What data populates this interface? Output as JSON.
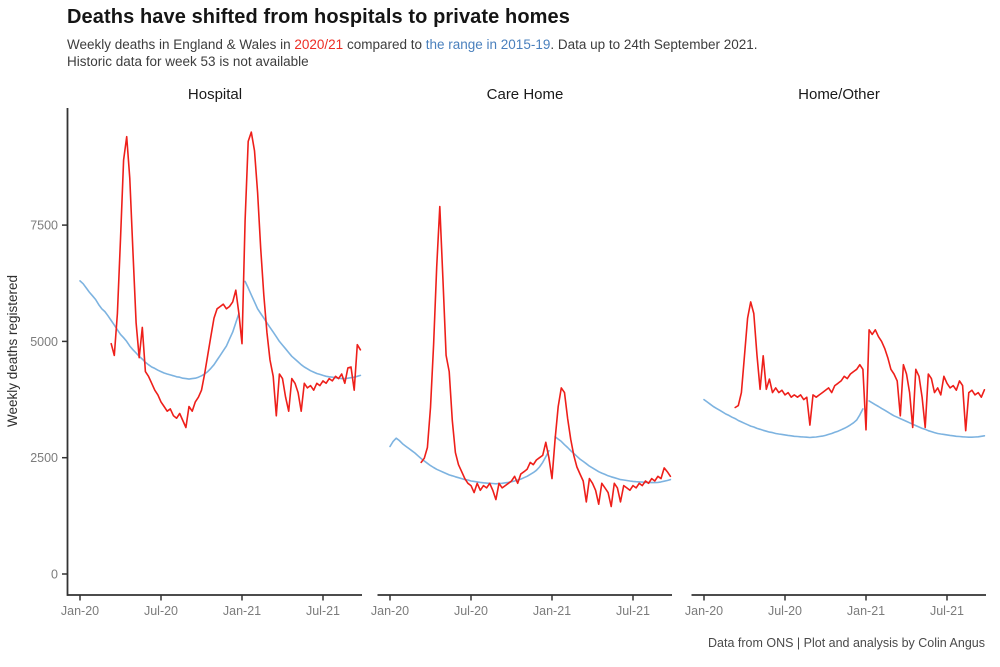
{
  "header": {
    "title": "Deaths have shifted from hospitals to private homes",
    "subtitle": {
      "pre": "Weekly deaths in England & Wales in ",
      "red": "2020/21",
      "mid": " compared to ",
      "blue": "the range in 2015-19",
      "post": ". Data up to 24th September 2021.",
      "line2": "Historic data for week 53 is not available"
    }
  },
  "footer": {
    "caption": "Data from ONS | Plot and analysis by Colin Angus"
  },
  "colors": {
    "red_line": "#ee1f1a",
    "blue_line": "#7db3e0",
    "red_text": "#ed2d24",
    "blue_text": "#4a80bd",
    "axis": "#333333",
    "tick_label": "#7c7c7c"
  },
  "chart_data": {
    "type": "line",
    "title": "Deaths have shifted from hospitals to private homes",
    "ylabel": "Weekly deaths registered",
    "xlabel": "",
    "ylim": [
      0,
      9900
    ],
    "grid": false,
    "legend": "inline in subtitle (red = 2020/21, blue = range in 2015-19)",
    "y_ticks": [
      0,
      2500,
      5000,
      7500
    ],
    "x_tick_labels": [
      "Jan-20",
      "Jul-20",
      "Jan-21",
      "Jul-21"
    ],
    "x_tick_weeks": [
      0,
      26,
      52,
      78
    ],
    "series_meta": {
      "red": {
        "name": "2020/21",
        "color": "#ee1f1a"
      },
      "blue": {
        "name": "range in 2015-19",
        "color": "#7db3e0"
      }
    },
    "facets": [
      {
        "title": "Hospital",
        "blue_start_week": 0,
        "blue": [
          6300,
          6240,
          6150,
          6060,
          5980,
          5900,
          5790,
          5700,
          5640,
          5550,
          5450,
          5350,
          5250,
          5150,
          5080,
          5000,
          4900,
          4820,
          4750,
          4680,
          4620,
          4550,
          4500,
          4450,
          4420,
          4380,
          4350,
          4320,
          4300,
          4280,
          4260,
          4240,
          4230,
          4210,
          4200,
          4190,
          4200,
          4210,
          4230,
          4260,
          4300,
          4350,
          4420,
          4500,
          4600,
          4700,
          4800,
          4900,
          5050,
          5200,
          5400,
          5600,
          null,
          6290,
          6150,
          6000,
          5850,
          5700,
          5600,
          5500,
          5400,
          5300,
          5200,
          5100,
          5000,
          4920,
          4840,
          4760,
          4680,
          4620,
          4560,
          4500,
          4450,
          4410,
          4370,
          4340,
          4310,
          4290,
          4270,
          4250,
          4240,
          4230,
          4220,
          4210,
          4200,
          4200,
          4210,
          4220,
          4230,
          4250,
          4270
        ],
        "red_start_week": 10,
        "red": [
          4950,
          4700,
          5600,
          7200,
          8900,
          9400,
          8500,
          6900,
          5400,
          4650,
          5300,
          4350,
          4250,
          4100,
          3950,
          3850,
          3700,
          3600,
          3500,
          3550,
          3400,
          3350,
          3450,
          3300,
          3150,
          3600,
          3500,
          3700,
          3800,
          3950,
          4300,
          4700,
          5100,
          5500,
          5700,
          5750,
          5800,
          5700,
          5750,
          5850,
          6100,
          5600,
          4950,
          7600,
          9300,
          9500,
          9100,
          8200,
          7000,
          6000,
          5200,
          4600,
          4250,
          3400,
          4300,
          4200,
          3800,
          3500,
          4200,
          4100,
          3900,
          3500,
          4100,
          4000,
          4050,
          3950,
          4100,
          4050,
          4150,
          4100,
          4200,
          4150,
          4250,
          4200,
          4300,
          4100,
          4430,
          4450,
          3950,
          4930,
          4820
        ]
      },
      {
        "title": "Care Home",
        "blue_start_week": 0,
        "blue": [
          2740,
          2850,
          2920,
          2870,
          2800,
          2750,
          2700,
          2650,
          2600,
          2540,
          2480,
          2430,
          2380,
          2330,
          2290,
          2250,
          2220,
          2190,
          2160,
          2130,
          2110,
          2090,
          2070,
          2050,
          2030,
          2020,
          2000,
          1990,
          1980,
          1970,
          1960,
          1955,
          1950,
          1945,
          1940,
          1945,
          1950,
          1960,
          1970,
          1985,
          2000,
          2020,
          2040,
          2070,
          2100,
          2140,
          2180,
          2230,
          2300,
          2400,
          2520,
          2650,
          null,
          2950,
          2900,
          2850,
          2780,
          2720,
          2650,
          2590,
          2530,
          2470,
          2420,
          2370,
          2320,
          2280,
          2240,
          2200,
          2170,
          2140,
          2110,
          2090,
          2070,
          2050,
          2030,
          2020,
          2010,
          2000,
          1990,
          1985,
          1980,
          1975,
          1970,
          1968,
          1965,
          1965,
          1970,
          1980,
          1995,
          2010,
          2030
        ],
        "red_start_week": 10,
        "red": [
          2400,
          2490,
          2720,
          3580,
          4930,
          6600,
          7900,
          6300,
          4700,
          4350,
          3300,
          2610,
          2350,
          2200,
          2050,
          1950,
          1900,
          1750,
          1950,
          1800,
          1900,
          1850,
          1950,
          1800,
          1600,
          1950,
          1850,
          1900,
          1950,
          2000,
          2100,
          1950,
          2150,
          2200,
          2250,
          2400,
          2350,
          2450,
          2500,
          2550,
          2830,
          2500,
          2050,
          2900,
          3600,
          4000,
          3900,
          3350,
          2900,
          2550,
          2300,
          2150,
          2000,
          1550,
          2050,
          1950,
          1800,
          1500,
          1950,
          1850,
          1750,
          1450,
          1950,
          1850,
          1550,
          1900,
          1850,
          1800,
          1900,
          1850,
          1950,
          1900,
          2000,
          1950,
          2050,
          2000,
          2100,
          2050,
          2280,
          2200,
          2100
        ]
      },
      {
        "title": "Home/Other",
        "blue_start_week": 0,
        "blue": [
          3750,
          3700,
          3650,
          3600,
          3560,
          3520,
          3480,
          3440,
          3410,
          3370,
          3340,
          3300,
          3270,
          3240,
          3210,
          3180,
          3160,
          3130,
          3110,
          3090,
          3070,
          3050,
          3040,
          3020,
          3010,
          3000,
          2990,
          2980,
          2970,
          2960,
          2955,
          2950,
          2945,
          2940,
          2935,
          2940,
          2945,
          2955,
          2965,
          2980,
          3000,
          3020,
          3045,
          3070,
          3100,
          3130,
          3165,
          3205,
          3250,
          3310,
          3420,
          3550,
          null,
          3720,
          3680,
          3640,
          3600,
          3560,
          3520,
          3480,
          3440,
          3400,
          3370,
          3340,
          3310,
          3280,
          3250,
          3220,
          3190,
          3160,
          3130,
          3110,
          3080,
          3060,
          3040,
          3020,
          3010,
          3000,
          2990,
          2980,
          2970,
          2960,
          2955,
          2950,
          2945,
          2940,
          2940,
          2945,
          2950,
          2960,
          2970
        ],
        "red_start_week": 10,
        "red": [
          3580,
          3620,
          3900,
          4700,
          5500,
          5850,
          5600,
          4700,
          3970,
          4690,
          3970,
          4190,
          3900,
          4000,
          3900,
          3950,
          3850,
          3900,
          3800,
          3850,
          3800,
          3850,
          3750,
          3800,
          3200,
          3850,
          3800,
          3850,
          3900,
          3950,
          4000,
          3900,
          4050,
          4100,
          4150,
          4250,
          4200,
          4300,
          4350,
          4400,
          4500,
          4400,
          3100,
          5250,
          5150,
          5250,
          5100,
          5000,
          4850,
          4650,
          4400,
          4300,
          4150,
          3400,
          4500,
          4300,
          3900,
          3150,
          4400,
          4250,
          3800,
          3150,
          4300,
          4200,
          3900,
          4000,
          3850,
          4250,
          4100,
          4000,
          4050,
          3950,
          4150,
          4050,
          3080,
          3900,
          3950,
          3850,
          3900,
          3800,
          3960
        ]
      }
    ]
  }
}
